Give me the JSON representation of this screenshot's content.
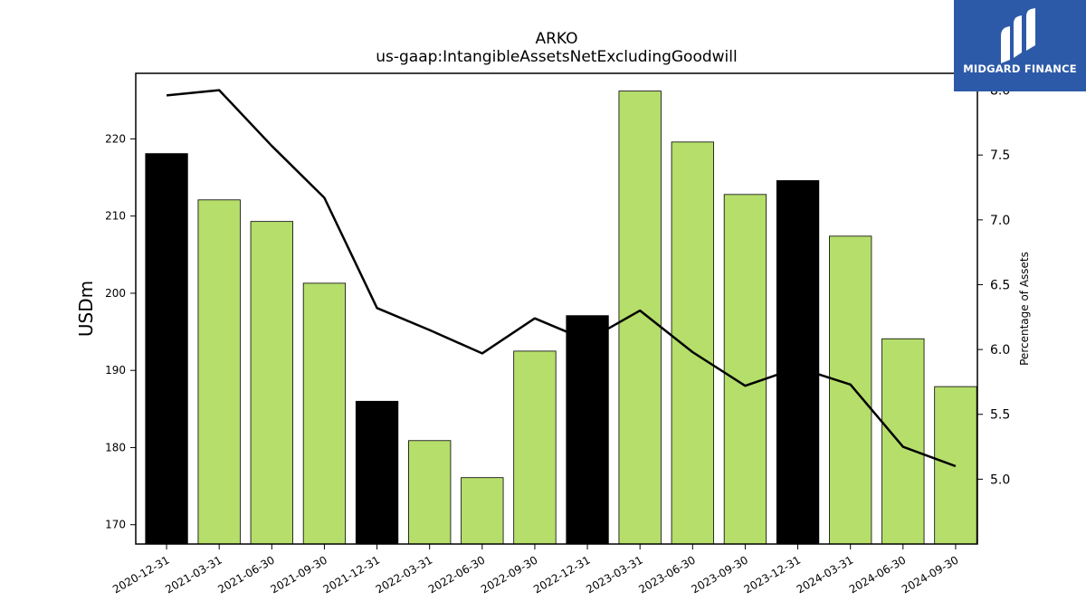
{
  "logo": {
    "text": "MIDGARD FINANCE",
    "background": "#2d5aa8"
  },
  "chart_data": {
    "type": "bar",
    "title": "ARKO",
    "subtitle": "us-gaap:IntangibleAssetsNetExcludingGoodwill",
    "ylabel": "USDm",
    "y2label": "Percentage of Assets",
    "ylim": [
      167.5,
      228.5
    ],
    "y2lim": [
      4.5,
      8.13
    ],
    "yticks": [
      170,
      180,
      190,
      200,
      210,
      220
    ],
    "y2ticks": [
      5.0,
      5.5,
      6.0,
      6.5,
      7.0,
      7.5,
      8.0
    ],
    "categories": [
      "2020-12-31",
      "2021-03-31",
      "2021-06-30",
      "2021-09-30",
      "2021-12-31",
      "2022-03-31",
      "2022-06-30",
      "2022-09-30",
      "2022-12-31",
      "2023-03-31",
      "2023-06-30",
      "2023-09-30",
      "2023-12-31",
      "2024-03-31",
      "2024-06-30",
      "2024-09-30"
    ],
    "series": [
      {
        "type": "bar",
        "values": [
          218.1,
          212.1,
          209.3,
          201.3,
          186.0,
          180.9,
          176.1,
          192.5,
          197.1,
          226.2,
          219.6,
          212.8,
          214.6,
          207.4,
          194.1,
          187.9
        ],
        "colors": [
          "#000000",
          "#b5de6b",
          "#b5de6b",
          "#b5de6b",
          "#000000",
          "#b5de6b",
          "#b5de6b",
          "#b5de6b",
          "#000000",
          "#b5de6b",
          "#b5de6b",
          "#b5de6b",
          "#000000",
          "#b5de6b",
          "#b5de6b",
          "#b5de6b"
        ]
      },
      {
        "type": "line",
        "axis": "right",
        "color": "#000000",
        "values": [
          7.96,
          8.0,
          7.57,
          7.17,
          6.32,
          6.15,
          5.97,
          6.24,
          6.07,
          6.3,
          5.98,
          5.72,
          5.86,
          5.73,
          5.25,
          5.1
        ]
      }
    ],
    "grid": false,
    "legend": "none"
  }
}
